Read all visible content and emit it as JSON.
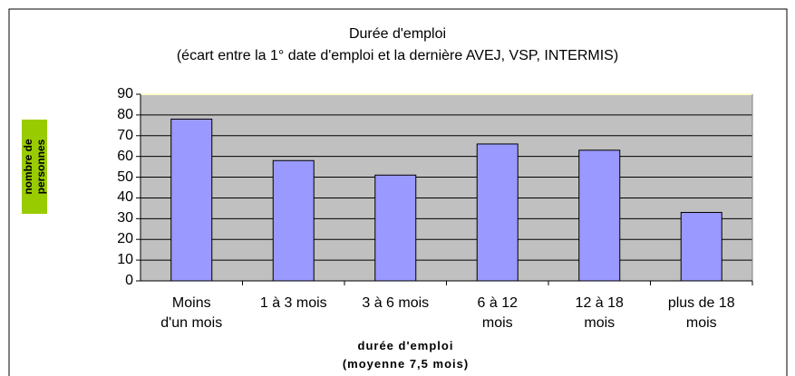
{
  "chart_data": {
    "type": "bar",
    "title": "Durée d'emploi",
    "subtitle": "(écart entre la 1° date d'emploi et la dernière AVEJ, VSP, INTERMIS)",
    "y_label": "nombre de personnes",
    "x_label": "durée d'emploi\n(moyenne 7,5 mois)",
    "categories": [
      "Moins\nd'un mois",
      "1 à 3 mois",
      "3 à 6 mois",
      "6 à 12\nmois",
      "12 à 18\nmois",
      "plus de 18\nmois"
    ],
    "values": [
      78,
      58,
      51,
      66,
      63,
      33
    ],
    "color": "#9999ff",
    "ylim": [
      0,
      90
    ],
    "yticks": [
      0,
      10,
      20,
      30,
      40,
      50,
      60,
      70,
      80,
      90
    ],
    "grid": true
  }
}
